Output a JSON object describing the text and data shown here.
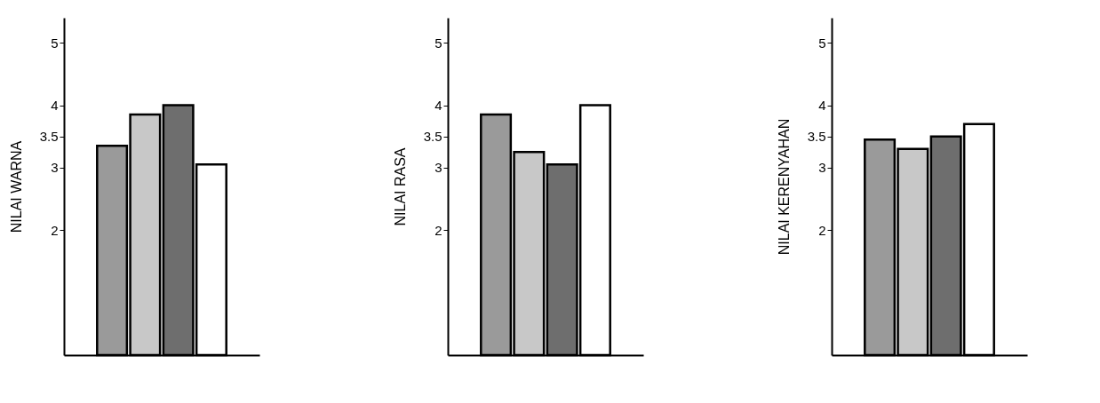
{
  "chart_data": [
    {
      "type": "bar",
      "ylabel": "NILAI WARNA",
      "categories": [
        null,
        null,
        null,
        null
      ],
      "values": [
        3.35,
        3.85,
        4.0,
        3.05
      ],
      "colors": [
        "#9a9a9a",
        "#c8c8c8",
        "#6e6e6e",
        "#ffffff"
      ],
      "ylim": [
        0,
        5.4
      ],
      "yticks": [
        2,
        3,
        3.5,
        4,
        5
      ],
      "tick_labels": "y",
      "grid": false
    },
    {
      "type": "bar",
      "ylabel": "NILAI RASA",
      "categories": [
        null,
        null,
        null,
        null
      ],
      "values": [
        3.85,
        3.25,
        3.05,
        4.0
      ],
      "colors": [
        "#9a9a9a",
        "#c8c8c8",
        "#6e6e6e",
        "#ffffff"
      ],
      "ylim": [
        0,
        5.4
      ],
      "yticks": [
        2,
        3,
        3.5,
        4,
        5
      ],
      "tick_labels": "y",
      "grid": false
    },
    {
      "type": "bar",
      "ylabel": "NILAI KERENYAHAN",
      "categories": [
        null,
        null,
        null,
        null
      ],
      "values": [
        3.45,
        3.3,
        3.5,
        3.7
      ],
      "colors": [
        "#9a9a9a",
        "#c8c8c8",
        "#6e6e6e",
        "#ffffff"
      ],
      "ylim": [
        0,
        5.4
      ],
      "yticks": [
        2,
        3,
        3.5,
        4,
        5
      ],
      "tick_labels": "y",
      "grid": false
    }
  ]
}
